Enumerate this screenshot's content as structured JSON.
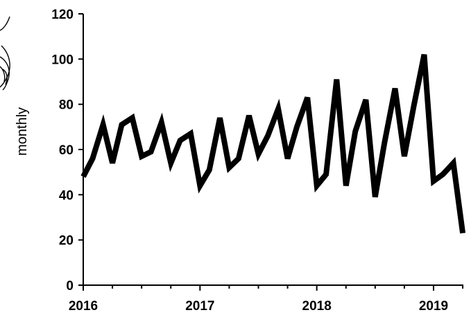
{
  "chart_data": {
    "type": "line",
    "title": "",
    "xlabel": "",
    "ylabel": "monthly",
    "ylim": [
      0,
      120
    ],
    "xlim": [
      2016,
      2019.3
    ],
    "yticks": [
      0,
      20,
      40,
      60,
      80,
      100,
      120
    ],
    "xticks": [
      "2016",
      "2017",
      "2018",
      "2019"
    ],
    "grid": false,
    "legend": "none",
    "series": [
      {
        "color": "#000000",
        "x": [
          2016.0,
          2016.08,
          2016.17,
          2016.25,
          2016.33,
          2016.42,
          2016.5,
          2016.58,
          2016.67,
          2016.75,
          2016.83,
          2016.92,
          2017.0,
          2017.08,
          2017.17,
          2017.25,
          2017.33,
          2017.42,
          2017.5,
          2017.58,
          2017.67,
          2017.75,
          2017.83,
          2017.92,
          2018.0,
          2018.08,
          2018.17,
          2018.25,
          2018.33,
          2018.42,
          2018.5,
          2018.58,
          2018.67,
          2018.75,
          2018.83,
          2018.92,
          2019.0,
          2019.08,
          2019.17,
          2019.25
        ],
        "y": [
          48,
          56,
          71,
          54,
          71,
          74,
          57,
          59,
          72,
          54,
          64,
          67,
          44,
          51,
          74,
          52,
          56,
          75,
          58,
          66,
          78,
          56,
          70,
          83,
          44,
          49,
          91,
          44,
          68,
          82,
          39,
          63,
          87,
          57,
          79,
          102,
          46,
          49,
          54,
          23
        ]
      }
    ]
  }
}
